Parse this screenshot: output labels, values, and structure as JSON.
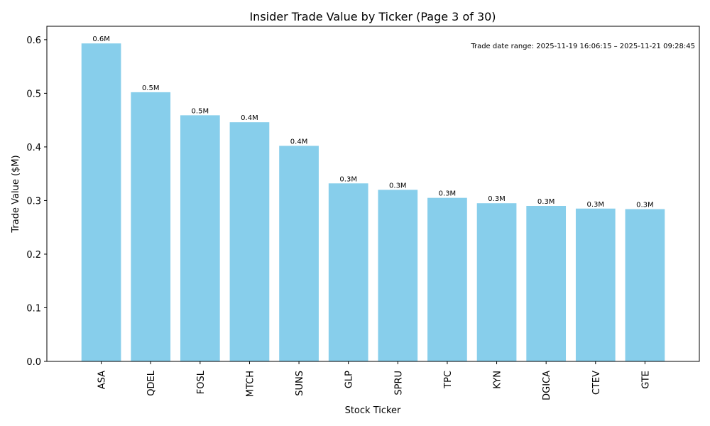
{
  "chart_data": {
    "type": "bar",
    "title": "Insider Trade Value by Ticker (Page 3 of 30)",
    "xlabel": "Stock Ticker",
    "ylabel": "Trade Value ($M)",
    "ylim": [
      0,
      0.625
    ],
    "yticks": [
      "0.0",
      "0.1",
      "0.2",
      "0.3",
      "0.4",
      "0.5",
      "0.6"
    ],
    "categories": [
      "ASA",
      "QDEL",
      "FOSL",
      "MTCH",
      "SUNS",
      "GLP",
      "SPRU",
      "TPC",
      "KYN",
      "DGICA",
      "CTEV",
      "GTE"
    ],
    "values": [
      0.593,
      0.502,
      0.459,
      0.446,
      0.402,
      0.332,
      0.32,
      0.305,
      0.295,
      0.29,
      0.285,
      0.284
    ],
    "data_labels": [
      "0.6M",
      "0.5M",
      "0.5M",
      "0.4M",
      "0.4M",
      "0.3M",
      "0.3M",
      "0.3M",
      "0.3M",
      "0.3M",
      "0.3M",
      "0.3M"
    ],
    "annotation": "Trade date range: 2025-11-19 16:06:15 – 2025-11-21 09:28:45",
    "grid": false,
    "bar_color": "#87ceeb"
  }
}
